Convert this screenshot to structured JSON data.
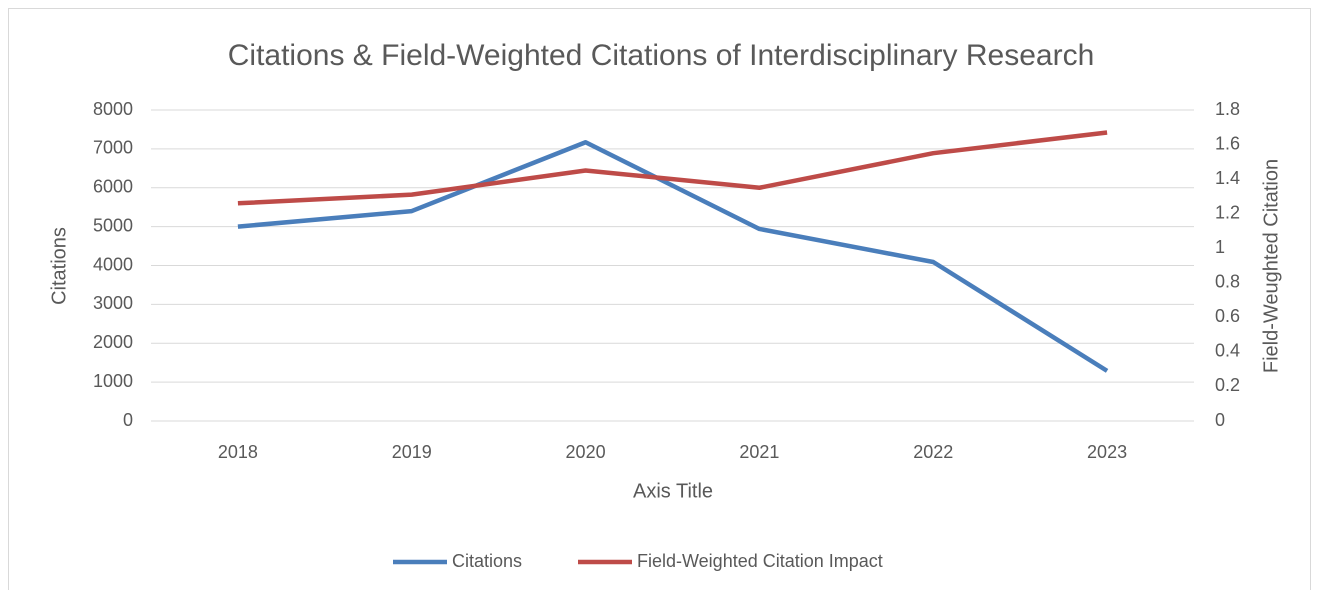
{
  "chart_data": {
    "type": "line",
    "title": "Citations & Field-Weighted Citations of Interdisciplinary Research",
    "x_label": "Axis Title",
    "y_label": "Citations",
    "y2_label": "Field-Weughted Citation",
    "categories": [
      "2018",
      "2019",
      "2020",
      "2021",
      "2022",
      "2023"
    ],
    "series": [
      {
        "name": "Citations",
        "color": "#4a7ebb",
        "values": [
          5000,
          5400,
          7170,
          4940,
          4090,
          1290
        ]
      },
      {
        "name": "Field-Weighted Citation Impact",
        "color": "#be4b48",
        "axis": "y2",
        "values": [
          1.26,
          1.31,
          1.45,
          1.35,
          1.55,
          1.67
        ]
      }
    ],
    "ylim": [
      0,
      8000
    ],
    "yticks": [
      0,
      1000,
      2000,
      3000,
      4000,
      5000,
      6000,
      7000,
      8000
    ],
    "y2lim": [
      0,
      1.8
    ],
    "y2ticks": [
      0,
      0.2,
      0.4,
      0.6,
      0.8,
      1,
      1.2,
      1.4,
      1.6,
      1.8
    ],
    "grid": true,
    "legend": "bottom"
  }
}
